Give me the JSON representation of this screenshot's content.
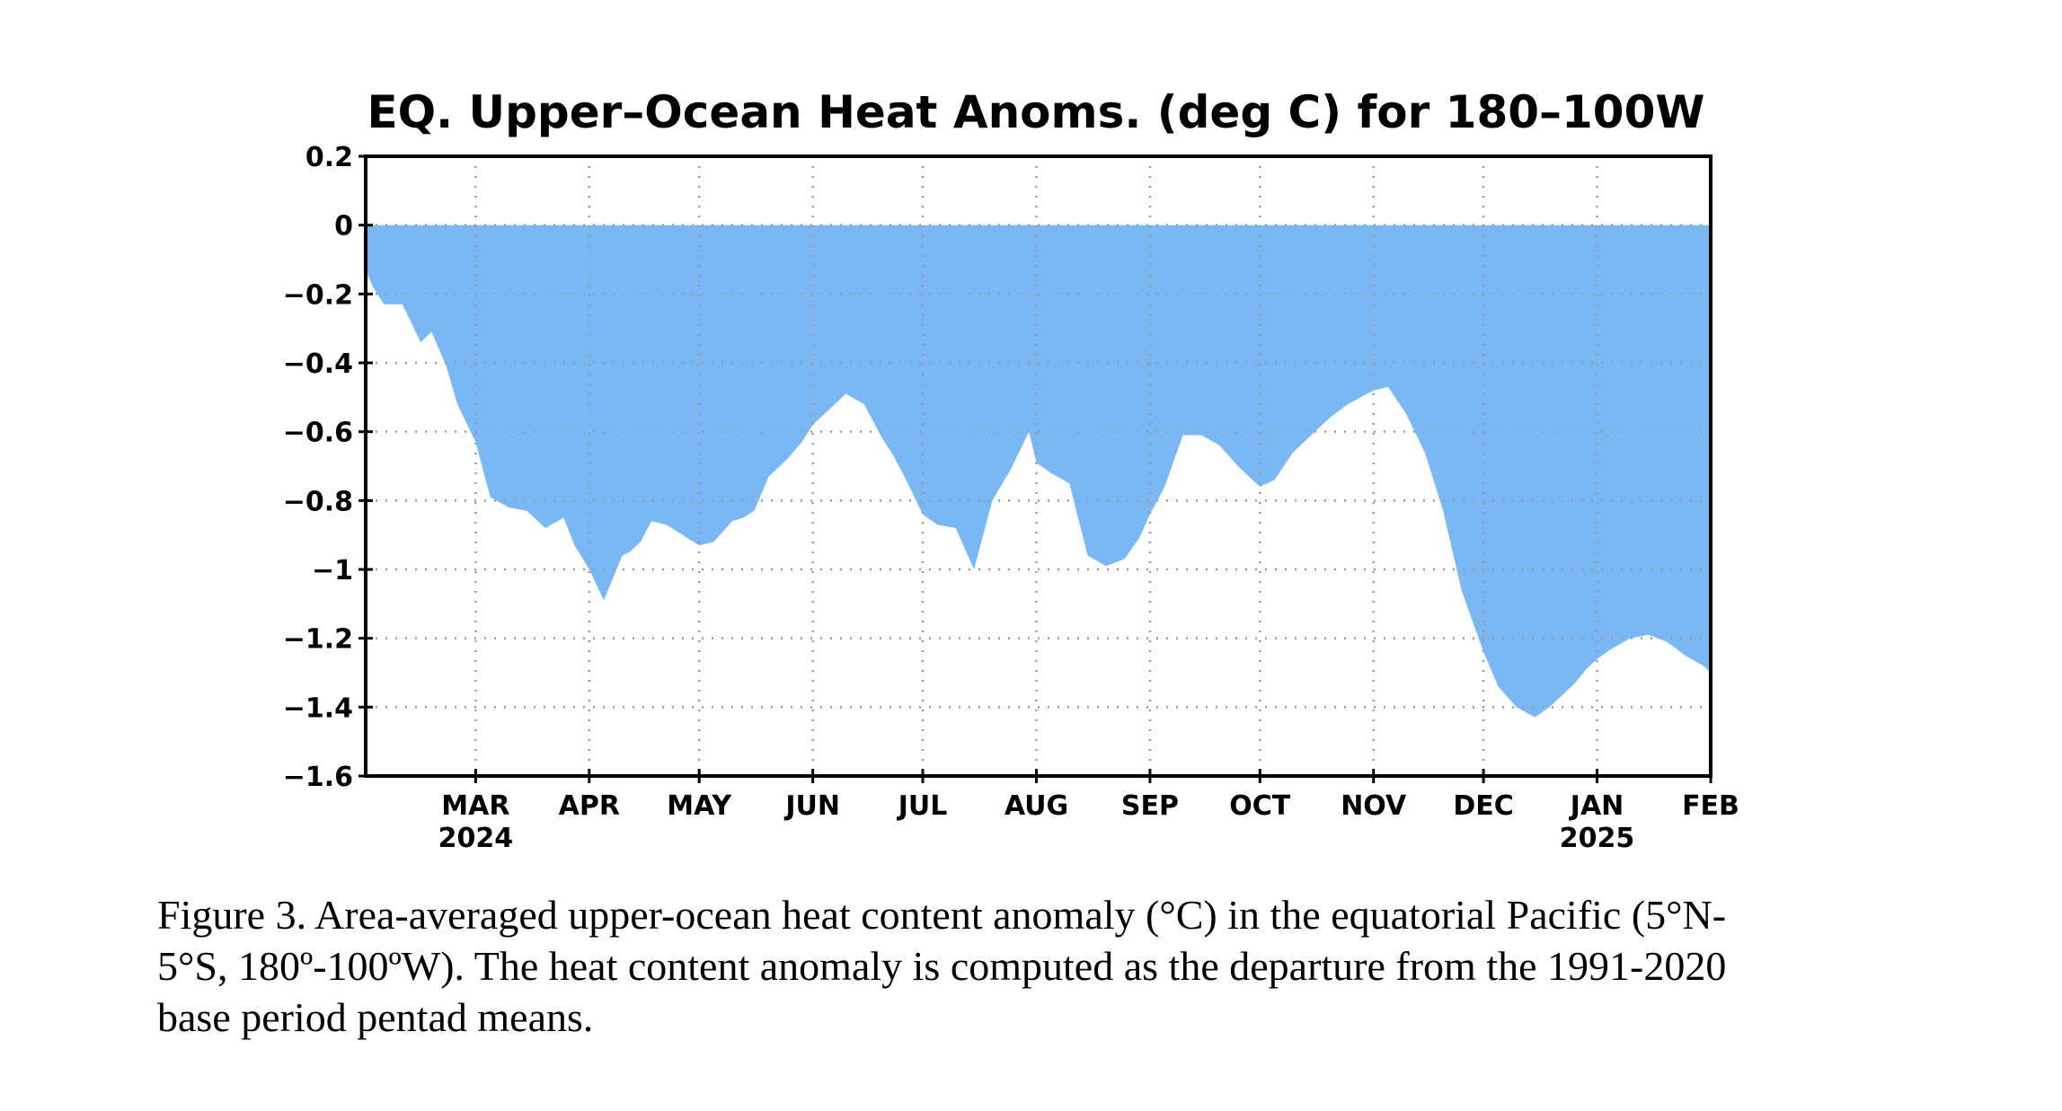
{
  "chart_data": {
    "type": "area",
    "title": "EQ. Upper–Ocean Heat Anoms. (deg C) for 180–100W",
    "xlabel": "",
    "ylabel": "",
    "ylim": [
      -1.6,
      0.2
    ],
    "y_ticks": [
      "0.2",
      "0",
      "−0.2",
      "−0.4",
      "−0.6",
      "−0.8",
      "−1",
      "−1.2",
      "−1.4",
      "−1.6"
    ],
    "y_tick_values": [
      0.2,
      0,
      -0.2,
      -0.4,
      -0.6,
      -0.8,
      -1.0,
      -1.2,
      -1.4,
      -1.6
    ],
    "x_ticks": [
      {
        "month": "MAR",
        "year": "2024",
        "date": "2024-03-01"
      },
      {
        "month": "APR",
        "year": "",
        "date": "2024-04-01"
      },
      {
        "month": "MAY",
        "year": "",
        "date": "2024-05-01"
      },
      {
        "month": "JUN",
        "year": "",
        "date": "2024-06-01"
      },
      {
        "month": "JUL",
        "year": "",
        "date": "2024-07-01"
      },
      {
        "month": "AUG",
        "year": "",
        "date": "2024-08-01"
      },
      {
        "month": "SEP",
        "year": "",
        "date": "2024-09-01"
      },
      {
        "month": "OCT",
        "year": "",
        "date": "2024-10-01"
      },
      {
        "month": "NOV",
        "year": "",
        "date": "2024-11-01"
      },
      {
        "month": "DEC",
        "year": "",
        "date": "2024-12-01"
      },
      {
        "month": "JAN",
        "year": "2025",
        "date": "2025-01-01"
      },
      {
        "month": "FEB",
        "year": "",
        "date": "2025-02-01"
      }
    ],
    "xlim": [
      "2024-01-31",
      "2025-02-01"
    ],
    "grid": true,
    "fill_color": "#7ab8f5",
    "series": [
      {
        "x": [
          "2024-01-31",
          "2024-02-02",
          "2024-02-05",
          "2024-02-10",
          "2024-02-15",
          "2024-02-18",
          "2024-02-22",
          "2024-02-25",
          "2024-03-01",
          "2024-03-05",
          "2024-03-10",
          "2024-03-15",
          "2024-03-20",
          "2024-03-25",
          "2024-03-28",
          "2024-04-01",
          "2024-04-05",
          "2024-04-10",
          "2024-04-12",
          "2024-04-15",
          "2024-04-18",
          "2024-04-22",
          "2024-04-25",
          "2024-05-01",
          "2024-05-05",
          "2024-05-10",
          "2024-05-13",
          "2024-05-16",
          "2024-05-20",
          "2024-05-25",
          "2024-05-29",
          "2024-06-01",
          "2024-06-05",
          "2024-06-10",
          "2024-06-15",
          "2024-06-20",
          "2024-06-23",
          "2024-06-26",
          "2024-07-01",
          "2024-07-05",
          "2024-07-10",
          "2024-07-15",
          "2024-07-20",
          "2024-07-25",
          "2024-07-30",
          "2024-08-01",
          "2024-08-05",
          "2024-08-10",
          "2024-08-15",
          "2024-08-20",
          "2024-08-25",
          "2024-08-29",
          "2024-09-01",
          "2024-09-05",
          "2024-09-10",
          "2024-09-15",
          "2024-09-20",
          "2024-09-25",
          "2024-10-01",
          "2024-10-05",
          "2024-10-10",
          "2024-10-15",
          "2024-10-20",
          "2024-10-25",
          "2024-11-01",
          "2024-11-05",
          "2024-11-10",
          "2024-11-15",
          "2024-11-20",
          "2024-11-25",
          "2024-12-01",
          "2024-12-05",
          "2024-12-10",
          "2024-12-15",
          "2024-12-19",
          "2024-12-23",
          "2024-12-26",
          "2024-12-29",
          "2025-01-01",
          "2025-01-05",
          "2025-01-10",
          "2025-01-15",
          "2025-01-20",
          "2025-01-25",
          "2025-01-30",
          "2025-02-01"
        ],
        "values": [
          -0.13,
          -0.18,
          -0.23,
          -0.23,
          -0.34,
          -0.31,
          -0.41,
          -0.52,
          -0.63,
          -0.79,
          -0.82,
          -0.83,
          -0.88,
          -0.85,
          -0.93,
          -1.0,
          -1.09,
          -0.96,
          -0.95,
          -0.92,
          -0.86,
          -0.87,
          -0.89,
          -0.93,
          -0.92,
          -0.86,
          -0.85,
          -0.83,
          -0.73,
          -0.68,
          -0.63,
          -0.58,
          -0.54,
          -0.49,
          -0.52,
          -0.62,
          -0.67,
          -0.73,
          -0.84,
          -0.87,
          -0.88,
          -1.0,
          -0.8,
          -0.71,
          -0.6,
          -0.69,
          -0.72,
          -0.75,
          -0.96,
          -0.99,
          -0.97,
          -0.91,
          -0.84,
          -0.76,
          -0.61,
          -0.61,
          -0.64,
          -0.7,
          -0.76,
          -0.74,
          -0.66,
          -0.61,
          -0.56,
          -0.52,
          -0.48,
          -0.47,
          -0.55,
          -0.66,
          -0.83,
          -1.06,
          -1.24,
          -1.34,
          -1.4,
          -1.43,
          -1.4,
          -1.36,
          -1.33,
          -1.29,
          -1.26,
          -1.23,
          -1.2,
          -1.19,
          -1.21,
          -1.25,
          -1.28,
          -1.3
        ]
      }
    ]
  },
  "caption": {
    "line1": "Figure 3. Area-averaged upper-ocean heat content anomaly (°C) in the equatorial Pacific (5°N-",
    "line2": "5°S, 180º-100ºW). The heat content anomaly is computed as the departure from the 1991-2020",
    "line3": "base period pentad means."
  }
}
